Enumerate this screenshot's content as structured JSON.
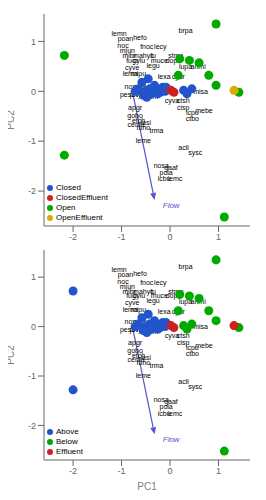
{
  "chart_data": [
    {
      "type": "scatter",
      "ylabel": "PC2",
      "xlim": [
        -2.6,
        1.65
      ],
      "ylim": [
        -2.7,
        1.55
      ],
      "xticks": [
        -2,
        -1,
        0,
        1
      ],
      "yticks": [
        -2,
        -1,
        0,
        1
      ],
      "grid": false,
      "legend": "lower left",
      "series": [
        {
          "name": "Closed",
          "color": "#2255cc",
          "x": [
            -0.1,
            -0.15,
            -0.2,
            -0.28,
            -0.35,
            -0.42,
            -0.5,
            -0.38,
            -0.25,
            -0.18,
            -0.08,
            -0.45,
            -0.58,
            -0.65,
            -0.72,
            -0.55,
            -0.48,
            -0.32,
            0.28,
            0.35,
            0.45
          ],
          "values": [
            0.0,
            0.08,
            -0.02,
            0.02,
            0.0,
            0.05,
            0.0,
            -0.05,
            -0.05,
            0.05,
            0.08,
            0.25,
            0.18,
            0.05,
            0.0,
            -0.08,
            -0.12,
            0.12,
            0.02,
            -0.05,
            0.05
          ]
        },
        {
          "name": "ClosedEffluent",
          "color": "#cc2222",
          "x": [
            0.02,
            0.08
          ],
          "values": [
            0.02,
            -0.02
          ]
        },
        {
          "name": "Open",
          "color": "#00aa00",
          "x": [
            -2.18,
            -2.18,
            1.12,
            0.95,
            1.42,
            0.6,
            0.4,
            0.2,
            0.8,
            0.95,
            0.17
          ],
          "values": [
            0.72,
            -1.28,
            -2.52,
            1.35,
            -0.02,
            0.57,
            0.62,
            0.65,
            0.32,
            0.12,
            0.32
          ]
        },
        {
          "name": "OpenEffluent",
          "color": "#ddaa00",
          "x": [
            1.32
          ],
          "values": [
            0.02
          ]
        }
      ],
      "annotations": [
        {
          "text": "lemn",
          "x": -1.05,
          "y": 1.15
        },
        {
          "text": "poan",
          "x": -0.92,
          "y": 1.05
        },
        {
          "text": "hefo",
          "x": -0.62,
          "y": 1.08
        },
        {
          "text": "brpa",
          "x": 0.32,
          "y": 1.22
        },
        {
          "text": "noc",
          "x": -0.97,
          "y": 0.92
        },
        {
          "text": "fnoc",
          "x": -0.48,
          "y": 0.9
        },
        {
          "text": "lecy",
          "x": -0.2,
          "y": 0.9
        },
        {
          "text": "mjun",
          "x": -0.88,
          "y": 0.82
        },
        {
          "text": "mibr",
          "x": -0.84,
          "y": 0.72
        },
        {
          "text": "mahyc",
          "x": -0.55,
          "y": 0.72
        },
        {
          "text": "fu",
          "x": -0.35,
          "y": 0.72
        },
        {
          "text": "stma",
          "x": 0.12,
          "y": 0.72
        },
        {
          "text": "fugr",
          "x": -0.78,
          "y": 0.62
        },
        {
          "text": "cylu",
          "x": -0.64,
          "y": 0.62
        },
        {
          "text": "muce",
          "x": -0.22,
          "y": 0.62
        },
        {
          "text": "dope",
          "x": 0.07,
          "y": 0.62
        },
        {
          "text": "cyve",
          "x": -0.78,
          "y": 0.48
        },
        {
          "text": "legu",
          "x": -0.35,
          "y": 0.52
        },
        {
          "text": "lupa",
          "x": 0.32,
          "y": 0.5
        },
        {
          "text": "anmi",
          "x": 0.58,
          "y": 0.5
        },
        {
          "text": "lema",
          "x": -0.82,
          "y": 0.35
        },
        {
          "text": "mipu",
          "x": -0.65,
          "y": 0.35
        },
        {
          "text": "lexa",
          "x": -0.12,
          "y": 0.3
        },
        {
          "text": "cyar",
          "x": 0.17,
          "y": 0.3
        },
        {
          "text": "novo",
          "x": -0.78,
          "y": 0.1
        },
        {
          "text": "note",
          "x": -0.62,
          "y": 0.1
        },
        {
          "text": "doce",
          "x": -0.52,
          "y": 0.0
        },
        {
          "text": "eslu",
          "x": -0.32,
          "y": 0.02
        },
        {
          "text": "misa",
          "x": 0.63,
          "y": 0.0
        },
        {
          "text": "pesc",
          "x": -0.88,
          "y": -0.06
        },
        {
          "text": "pivi",
          "x": -0.72,
          "y": -0.06
        },
        {
          "text": "lyfu",
          "x": -0.58,
          "y": -0.06
        },
        {
          "text": "opem",
          "x": -0.42,
          "y": -0.1
        },
        {
          "text": "cyva",
          "x": 0.04,
          "y": -0.18
        },
        {
          "text": "ctsh",
          "x": 0.27,
          "y": -0.18
        },
        {
          "text": "apgr",
          "x": -0.72,
          "y": -0.32
        },
        {
          "text": "cisp",
          "x": 0.27,
          "y": -0.32
        },
        {
          "text": "icpu",
          "x": 0.46,
          "y": -0.42
        },
        {
          "text": "mebe",
          "x": 0.7,
          "y": -0.38
        },
        {
          "text": "gobo",
          "x": -0.72,
          "y": -0.48
        },
        {
          "text": "ctbo",
          "x": 0.46,
          "y": -0.55
        },
        {
          "text": "etch",
          "x": -0.65,
          "y": -0.58
        },
        {
          "text": "lasi",
          "x": -0.5,
          "y": -0.62
        },
        {
          "text": "cema",
          "x": -0.7,
          "y": -0.67
        },
        {
          "text": "funo",
          "x": -0.55,
          "y": -0.72
        },
        {
          "text": "trma",
          "x": -0.28,
          "y": -0.78
        },
        {
          "text": "leme",
          "x": -0.55,
          "y": -0.98
        },
        {
          "text": "acli",
          "x": 0.28,
          "y": -1.12
        },
        {
          "text": "sysc",
          "x": 0.52,
          "y": -1.22
        },
        {
          "text": "nosa",
          "x": -0.18,
          "y": -1.48
        },
        {
          "text": "gaaf",
          "x": 0.02,
          "y": -1.52
        },
        {
          "text": "pola",
          "x": -0.08,
          "y": -1.62
        },
        {
          "text": "icbu",
          "x": -0.12,
          "y": -1.75
        },
        {
          "text": "lemc",
          "x": 0.1,
          "y": -1.75
        },
        {
          "text": "Flow",
          "x": -0.15,
          "y": -2.22,
          "color": "#5555cc",
          "arrow": {
            "x": [
              -0.78,
              -0.32
            ],
            "y": [
              0.02,
              -2.18
            ]
          }
        }
      ]
    },
    {
      "type": "scatter",
      "xlabel": "PC1",
      "ylabel": "PC2",
      "xlim": [
        -2.6,
        1.65
      ],
      "ylim": [
        -2.7,
        1.55
      ],
      "xticks": [
        -2,
        -1,
        0,
        1
      ],
      "yticks": [
        -2,
        -1,
        0,
        1
      ],
      "grid": false,
      "legend": "lower left",
      "series": [
        {
          "name": "Above",
          "color": "#2255cc",
          "x": [
            -2.0,
            -2.0,
            -0.1,
            -0.15,
            -0.2,
            -0.28,
            -0.35,
            -0.42,
            -0.5,
            -0.38,
            -0.25,
            -0.18,
            -0.08,
            -0.45,
            -0.58,
            -0.65,
            -0.72,
            -0.55,
            -0.48,
            -0.32
          ],
          "values": [
            0.72,
            -1.28,
            0.0,
            0.08,
            -0.02,
            0.02,
            0.0,
            0.05,
            0.0,
            -0.05,
            -0.05,
            0.05,
            0.08,
            0.25,
            0.18,
            0.05,
            0.0,
            -0.08,
            -0.12,
            0.12
          ]
        },
        {
          "name": "Below",
          "color": "#00aa00",
          "x": [
            1.12,
            0.95,
            1.42,
            0.6,
            0.4,
            0.2,
            0.8,
            0.95,
            0.17,
            0.28,
            0.35,
            0.45
          ],
          "values": [
            -2.52,
            1.35,
            -0.02,
            0.57,
            0.62,
            0.65,
            0.32,
            0.12,
            0.32,
            0.02,
            -0.05,
            0.05
          ]
        },
        {
          "name": "Effluent",
          "color": "#cc2222",
          "x": [
            1.32,
            0.02,
            0.08
          ],
          "values": [
            0.02,
            0.02,
            -0.02
          ]
        }
      ],
      "annotations": [
        {
          "text": "lemn",
          "x": -1.05,
          "y": 1.15
        },
        {
          "text": "poan",
          "x": -0.92,
          "y": 1.05
        },
        {
          "text": "hefo",
          "x": -0.62,
          "y": 1.08
        },
        {
          "text": "brpa",
          "x": 0.32,
          "y": 1.22
        },
        {
          "text": "noc",
          "x": -0.97,
          "y": 0.92
        },
        {
          "text": "fnoc",
          "x": -0.48,
          "y": 0.9
        },
        {
          "text": "lecy",
          "x": -0.2,
          "y": 0.9
        },
        {
          "text": "mjun",
          "x": -0.88,
          "y": 0.82
        },
        {
          "text": "mibr",
          "x": -0.84,
          "y": 0.72
        },
        {
          "text": "mahyc",
          "x": -0.55,
          "y": 0.72
        },
        {
          "text": "fu",
          "x": -0.35,
          "y": 0.72
        },
        {
          "text": "stma",
          "x": 0.12,
          "y": 0.72
        },
        {
          "text": "fugr",
          "x": -0.78,
          "y": 0.62
        },
        {
          "text": "cylu",
          "x": -0.64,
          "y": 0.62
        },
        {
          "text": "muce",
          "x": -0.22,
          "y": 0.62
        },
        {
          "text": "dope",
          "x": 0.07,
          "y": 0.62
        },
        {
          "text": "cyve",
          "x": -0.78,
          "y": 0.48
        },
        {
          "text": "legu",
          "x": -0.35,
          "y": 0.52
        },
        {
          "text": "lupa",
          "x": 0.32,
          "y": 0.5
        },
        {
          "text": "anmi",
          "x": 0.58,
          "y": 0.5
        },
        {
          "text": "lema",
          "x": -0.82,
          "y": 0.35
        },
        {
          "text": "mipu",
          "x": -0.65,
          "y": 0.35
        },
        {
          "text": "lexa",
          "x": -0.12,
          "y": 0.3
        },
        {
          "text": "cyar",
          "x": 0.17,
          "y": 0.3
        },
        {
          "text": "novo",
          "x": -0.78,
          "y": 0.1
        },
        {
          "text": "note",
          "x": -0.62,
          "y": 0.1
        },
        {
          "text": "doce",
          "x": -0.52,
          "y": 0.0
        },
        {
          "text": "eslu",
          "x": -0.32,
          "y": 0.02
        },
        {
          "text": "misa",
          "x": 0.63,
          "y": 0.0
        },
        {
          "text": "pesc",
          "x": -0.88,
          "y": -0.06
        },
        {
          "text": "pivi",
          "x": -0.72,
          "y": -0.06
        },
        {
          "text": "lyfu",
          "x": -0.58,
          "y": -0.06
        },
        {
          "text": "opem",
          "x": -0.42,
          "y": -0.1
        },
        {
          "text": "cyva",
          "x": 0.04,
          "y": -0.18
        },
        {
          "text": "ctsh",
          "x": 0.27,
          "y": -0.18
        },
        {
          "text": "apgr",
          "x": -0.72,
          "y": -0.32
        },
        {
          "text": "cisp",
          "x": 0.27,
          "y": -0.32
        },
        {
          "text": "icpu",
          "x": 0.46,
          "y": -0.42
        },
        {
          "text": "mebe",
          "x": 0.7,
          "y": -0.38
        },
        {
          "text": "gobo",
          "x": -0.72,
          "y": -0.48
        },
        {
          "text": "ctbo",
          "x": 0.46,
          "y": -0.55
        },
        {
          "text": "etch",
          "x": -0.65,
          "y": -0.58
        },
        {
          "text": "lasi",
          "x": -0.5,
          "y": -0.62
        },
        {
          "text": "cema",
          "x": -0.7,
          "y": -0.67
        },
        {
          "text": "funo",
          "x": -0.55,
          "y": -0.72
        },
        {
          "text": "trma",
          "x": -0.28,
          "y": -0.78
        },
        {
          "text": "leme",
          "x": -0.55,
          "y": -0.98
        },
        {
          "text": "acli",
          "x": 0.28,
          "y": -1.12
        },
        {
          "text": "sysc",
          "x": 0.52,
          "y": -1.22
        },
        {
          "text": "nosa",
          "x": -0.18,
          "y": -1.48
        },
        {
          "text": "gaaf",
          "x": 0.02,
          "y": -1.52
        },
        {
          "text": "pola",
          "x": -0.08,
          "y": -1.62
        },
        {
          "text": "icbu",
          "x": -0.12,
          "y": -1.75
        },
        {
          "text": "lemc",
          "x": 0.1,
          "y": -1.75
        },
        {
          "text": "Flow",
          "x": -0.15,
          "y": -2.22,
          "color": "#5555cc",
          "arrow": {
            "x": [
              -0.78,
              -0.32
            ],
            "y": [
              0.02,
              -2.18
            ]
          }
        }
      ]
    }
  ]
}
